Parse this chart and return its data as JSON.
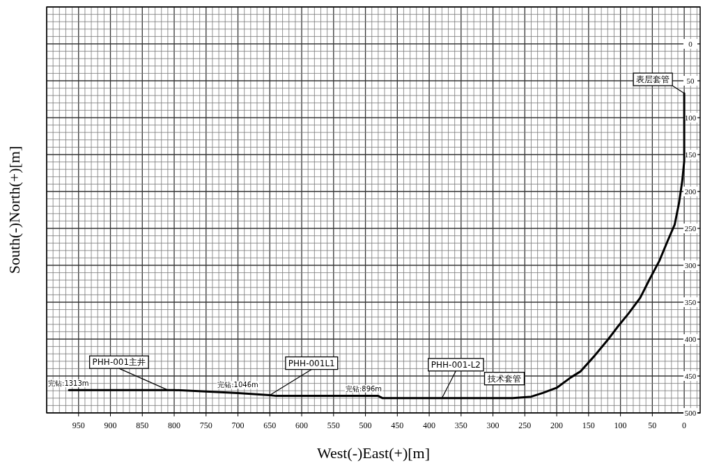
{
  "chart_data": {
    "type": "line",
    "xlabel": "West(-)East(+)[m]",
    "ylabel": "South(-)North(+)[m]",
    "xlim": [
      1000,
      -25
    ],
    "ylim": [
      500,
      -50
    ],
    "xticks": [
      950,
      900,
      850,
      800,
      750,
      700,
      650,
      600,
      550,
      500,
      450,
      400,
      350,
      300,
      250,
      200,
      150,
      100,
      50,
      0
    ],
    "yticks": [
      0,
      50,
      100,
      150,
      200,
      250,
      300,
      350,
      400,
      450,
      500
    ],
    "grid": true,
    "marker": "none",
    "line_style": "solid",
    "series": [
      {
        "color": "#000000",
        "x": [
          0,
          0,
          3,
          8,
          15,
          26,
          39,
          55,
          69,
          87,
          105,
          119,
          141,
          163,
          178,
          200,
          222,
          240,
          269,
          305,
          400,
          473,
          480,
          550,
          640,
          650,
          700,
          750,
          800,
          870,
          965
        ],
        "values": [
          67,
          159,
          185,
          215,
          245,
          267,
          294,
          320,
          344,
          365,
          384,
          400,
          423,
          444,
          452,
          466,
          473,
          478,
          480,
          480,
          480,
          480,
          477,
          477,
          477,
          476,
          473,
          471,
          469,
          469,
          469
        ]
      }
    ],
    "annotations": [
      {
        "text": "表层套管",
        "x": 0,
        "y": 67
      },
      {
        "text": "技术套管",
        "x": 240,
        "y": 478
      },
      {
        "text": "PHH-001主井",
        "x": 810,
        "y": 469
      },
      {
        "text": "PHH-001L1",
        "x": 650,
        "y": 476
      },
      {
        "text": "PHH-001-L2",
        "x": 380,
        "y": 480
      },
      {
        "text": "完钻:1313m",
        "x": 965,
        "y": 469
      },
      {
        "text": "完钻:1046m",
        "x": 700,
        "y": 473
      },
      {
        "text": "完钻:896m",
        "x": 470,
        "y": 478
      }
    ]
  }
}
